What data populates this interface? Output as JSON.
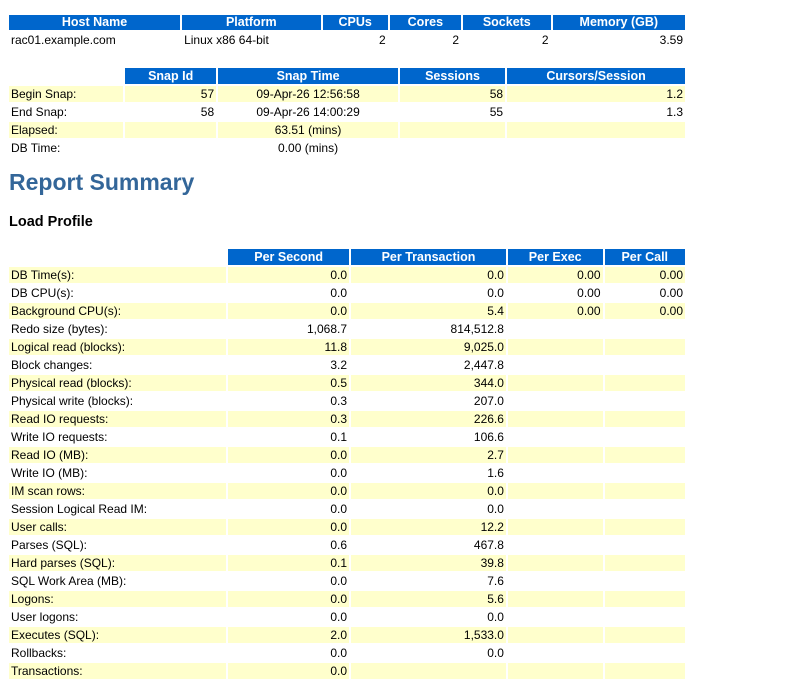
{
  "host_table": {
    "headers": [
      "Host Name",
      "Platform",
      "CPUs",
      "Cores",
      "Sockets",
      "Memory (GB)"
    ],
    "row": [
      "rac01.example.com",
      "Linux x86 64-bit",
      "2",
      "2",
      "2",
      "3.59"
    ]
  },
  "snap_table": {
    "headers": [
      "Snap Id",
      "Snap Time",
      "Sessions",
      "Cursors/Session"
    ],
    "rows": [
      {
        "label": "Begin Snap:",
        "snap_id": "57",
        "snap_time": "09-Apr-26 12:56:58",
        "sessions": "58",
        "cursors": "1.2"
      },
      {
        "label": "End Snap:",
        "snap_id": "58",
        "snap_time": "09-Apr-26 14:00:29",
        "sessions": "55",
        "cursors": "1.3"
      },
      {
        "label": "Elapsed:",
        "snap_id": "",
        "snap_time": "63.51 (mins)",
        "sessions": "",
        "cursors": ""
      },
      {
        "label": "DB Time:",
        "snap_id": "",
        "snap_time": "0.00 (mins)",
        "sessions": "",
        "cursors": ""
      }
    ]
  },
  "report_title": "Report Summary",
  "load_profile": {
    "title": "Load Profile",
    "headers": [
      "Per Second",
      "Per Transaction",
      "Per Exec",
      "Per Call"
    ],
    "rows": [
      {
        "label": "DB Time(s):",
        "per_second": "0.0",
        "per_txn": "0.0",
        "per_exec": "0.00",
        "per_call": "0.00"
      },
      {
        "label": "DB CPU(s):",
        "per_second": "0.0",
        "per_txn": "0.0",
        "per_exec": "0.00",
        "per_call": "0.00"
      },
      {
        "label": "Background CPU(s):",
        "per_second": "0.0",
        "per_txn": "5.4",
        "per_exec": "0.00",
        "per_call": "0.00"
      },
      {
        "label": "Redo size (bytes):",
        "per_second": "1,068.7",
        "per_txn": "814,512.8",
        "per_exec": "",
        "per_call": ""
      },
      {
        "label": "Logical read (blocks):",
        "per_second": "11.8",
        "per_txn": "9,025.0",
        "per_exec": "",
        "per_call": ""
      },
      {
        "label": "Block changes:",
        "per_second": "3.2",
        "per_txn": "2,447.8",
        "per_exec": "",
        "per_call": ""
      },
      {
        "label": "Physical read (blocks):",
        "per_second": "0.5",
        "per_txn": "344.0",
        "per_exec": "",
        "per_call": ""
      },
      {
        "label": "Physical write (blocks):",
        "per_second": "0.3",
        "per_txn": "207.0",
        "per_exec": "",
        "per_call": ""
      },
      {
        "label": "Read IO requests:",
        "per_second": "0.3",
        "per_txn": "226.6",
        "per_exec": "",
        "per_call": ""
      },
      {
        "label": "Write IO requests:",
        "per_second": "0.1",
        "per_txn": "106.6",
        "per_exec": "",
        "per_call": ""
      },
      {
        "label": "Read IO (MB):",
        "per_second": "0.0",
        "per_txn": "2.7",
        "per_exec": "",
        "per_call": ""
      },
      {
        "label": "Write IO (MB):",
        "per_second": "0.0",
        "per_txn": "1.6",
        "per_exec": "",
        "per_call": ""
      },
      {
        "label": "IM scan rows:",
        "per_second": "0.0",
        "per_txn": "0.0",
        "per_exec": "",
        "per_call": ""
      },
      {
        "label": "Session Logical Read IM:",
        "per_second": "0.0",
        "per_txn": "0.0",
        "per_exec": "",
        "per_call": ""
      },
      {
        "label": "User calls:",
        "per_second": "0.0",
        "per_txn": "12.2",
        "per_exec": "",
        "per_call": ""
      },
      {
        "label": "Parses (SQL):",
        "per_second": "0.6",
        "per_txn": "467.8",
        "per_exec": "",
        "per_call": ""
      },
      {
        "label": "Hard parses (SQL):",
        "per_second": "0.1",
        "per_txn": "39.8",
        "per_exec": "",
        "per_call": ""
      },
      {
        "label": "SQL Work Area (MB):",
        "per_second": "0.0",
        "per_txn": "7.6",
        "per_exec": "",
        "per_call": ""
      },
      {
        "label": "Logons:",
        "per_second": "0.0",
        "per_txn": "5.6",
        "per_exec": "",
        "per_call": ""
      },
      {
        "label": "User logons:",
        "per_second": "0.0",
        "per_txn": "0.0",
        "per_exec": "",
        "per_call": ""
      },
      {
        "label": "Executes (SQL):",
        "per_second": "2.0",
        "per_txn": "1,533.0",
        "per_exec": "",
        "per_call": ""
      },
      {
        "label": "Rollbacks:",
        "per_second": "0.0",
        "per_txn": "0.0",
        "per_exec": "",
        "per_call": ""
      },
      {
        "label": "Transactions:",
        "per_second": "0.0",
        "per_txn": "",
        "per_exec": "",
        "per_call": ""
      }
    ]
  },
  "colors": {
    "header_bg": "#0066cc",
    "header_text": "#ffffff",
    "alt_row": "#ffffcc",
    "title": "#336699"
  }
}
